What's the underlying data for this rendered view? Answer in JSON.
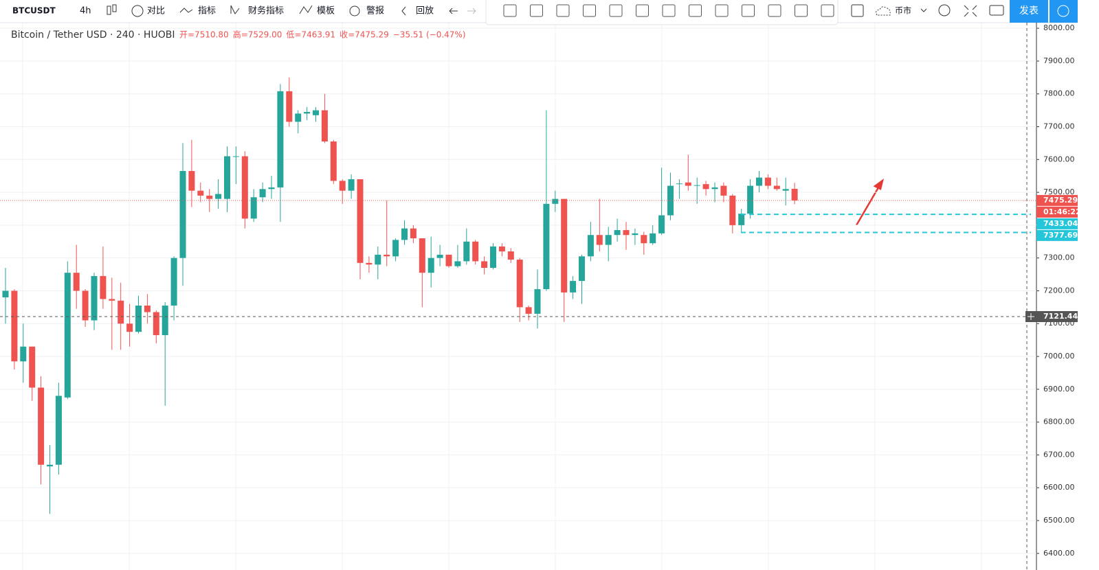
{
  "toolbar": {
    "symbol": "BTCUSDT",
    "interval": "4h",
    "items": [
      "对比",
      "指标",
      "财务指标",
      "模板",
      "警报",
      "回放"
    ],
    "market": "币市",
    "publish": "发表"
  },
  "chart_data": {
    "type": "candlestick",
    "title": "Bitcoin / Tether USD · 240 · HUOBI",
    "legend_items": [
      "开=7510.80",
      "高=7529.00",
      "低=7463.91",
      "收=7475.29",
      "−35.51 (−0.47%)"
    ],
    "up_color": "#26a69a",
    "down_color": "#ef5350",
    "open": [
      7180,
      7200,
      6985,
      7030,
      6905,
      6665,
      6670,
      6875,
      7255,
      7200,
      7110,
      7245,
      7175,
      7170,
      7100,
      7075,
      7155,
      7135,
      7065,
      7155,
      7300,
      7565,
      7505,
      7490,
      7480,
      7480,
      7610,
      7610,
      7420,
      7485,
      7510,
      7515,
      7808,
      7715,
      7740,
      7735,
      7750,
      7655,
      7535,
      7505,
      7540,
      7285,
      7280,
      7310,
      7305,
      7355,
      7390,
      7360,
      7255,
      7300,
      7310,
      7275,
      7290,
      7350,
      7290,
      7270,
      7335,
      7320,
      7295,
      7150,
      7130,
      7205,
      7465,
      7480,
      7195,
      7230,
      7305,
      7370,
      7340,
      7370,
      7385,
      7370,
      7370,
      7345,
      7375,
      7430,
      7525,
      7530,
      7520,
      7525,
      7510,
      7520,
      7490,
      7400,
      7435,
      7520,
      7545,
      7520,
      7505,
      7510.8
    ],
    "high": [
      7270,
      7205,
      7100,
      7030,
      6940,
      6730,
      6920,
      7290,
      7340,
      7205,
      7255,
      7335,
      7240,
      7225,
      7160,
      7185,
      7190,
      7140,
      7165,
      7305,
      7650,
      7660,
      7530,
      7510,
      7540,
      7640,
      7640,
      7625,
      7510,
      7530,
      7550,
      7830,
      7850,
      7750,
      7760,
      7760,
      7800,
      7660,
      7540,
      7555,
      7540,
      7305,
      7335,
      7475,
      7360,
      7415,
      7400,
      7360,
      7365,
      7340,
      7310,
      7340,
      7390,
      7355,
      7305,
      7345,
      7345,
      7330,
      7300,
      7155,
      7265,
      7750,
      7505,
      7480,
      7245,
      7310,
      7410,
      7480,
      7395,
      7420,
      7410,
      7390,
      7380,
      7400,
      7575,
      7560,
      7540,
      7615,
      7545,
      7535,
      7530,
      7530,
      7495,
      7450,
      7540,
      7565,
      7555,
      7545,
      7545,
      7529
    ],
    "low": [
      7100,
      6960,
      6920,
      6865,
      6610,
      6520,
      6640,
      6870,
      7145,
      7090,
      7080,
      7145,
      7020,
      7020,
      7030,
      7070,
      7100,
      7040,
      6850,
      7110,
      7215,
      7455,
      7470,
      7440,
      7450,
      7440,
      7525,
      7390,
      7410,
      7470,
      7480,
      7410,
      7700,
      7680,
      7720,
      7715,
      7650,
      7525,
      7465,
      7480,
      7235,
      7255,
      7235,
      7275,
      7290,
      7340,
      7345,
      7150,
      7210,
      7275,
      7270,
      7270,
      7280,
      7280,
      7250,
      7265,
      7305,
      7285,
      7105,
      7110,
      7085,
      7200,
      7440,
      7105,
      7175,
      7160,
      7290,
      7320,
      7290,
      7350,
      7325,
      7340,
      7310,
      7340,
      7370,
      7415,
      7480,
      7505,
      7465,
      7490,
      7470,
      7470,
      7375,
      7380,
      7420,
      7500,
      7510,
      7505,
      7460,
      7463.91
    ],
    "close": [
      7200,
      6985,
      7030,
      6905,
      6670,
      6670,
      6880,
      7255,
      7200,
      7110,
      7245,
      7175,
      7170,
      7100,
      7075,
      7155,
      7135,
      7065,
      7155,
      7300,
      7565,
      7505,
      7490,
      7480,
      7495,
      7610,
      7610,
      7420,
      7485,
      7510,
      7515,
      7808,
      7715,
      7740,
      7745,
      7750,
      7655,
      7535,
      7505,
      7540,
      7285,
      7280,
      7310,
      7305,
      7355,
      7390,
      7360,
      7255,
      7300,
      7310,
      7275,
      7290,
      7350,
      7290,
      7270,
      7335,
      7320,
      7295,
      7150,
      7130,
      7205,
      7465,
      7480,
      7195,
      7230,
      7305,
      7370,
      7340,
      7370,
      7385,
      7370,
      7375,
      7345,
      7375,
      7430,
      7520,
      7527,
      7520,
      7522,
      7510,
      7515,
      7490,
      7400,
      7435,
      7520,
      7545,
      7520,
      7510,
      7510,
      7475.29
    ],
    "ylim": [
      6387,
      8017
    ],
    "yticks": [
      {
        "value": 8000,
        "label": "8000.00"
      },
      {
        "value": 7900,
        "label": "7900.00"
      },
      {
        "value": 7800,
        "label": "7800.00"
      },
      {
        "value": 7700,
        "label": "7700.00"
      },
      {
        "value": 7600,
        "label": "7600.00"
      },
      {
        "value": 7500,
        "label": "7500.00"
      },
      {
        "value": 7400,
        "label": "7400.00"
      },
      {
        "value": 7300,
        "label": "7300.00"
      },
      {
        "value": 7200,
        "label": "7200.00"
      },
      {
        "value": 7100,
        "label": "7100.00"
      },
      {
        "value": 7000,
        "label": "7000.00"
      },
      {
        "value": 6900,
        "label": "6900.00"
      },
      {
        "value": 6800,
        "label": "6800.00"
      },
      {
        "value": 6700,
        "label": "6700.00"
      },
      {
        "value": 6600,
        "label": "6600.00"
      },
      {
        "value": 6500,
        "label": "6500.00"
      },
      {
        "value": 6400,
        "label": "6400.00"
      }
    ],
    "grid": true,
    "price_lines": [
      {
        "value": 7475.29,
        "color": "#ef5350",
        "style": "dotted"
      },
      {
        "value": 7433.04,
        "color": "#26c6da",
        "style": "dashed"
      },
      {
        "value": 7377.69,
        "color": "#26c6da",
        "style": "dashed"
      },
      {
        "value": 7121.44,
        "color": "#555555",
        "style": "crosshair"
      }
    ],
    "countdown": "01:46:22"
  }
}
